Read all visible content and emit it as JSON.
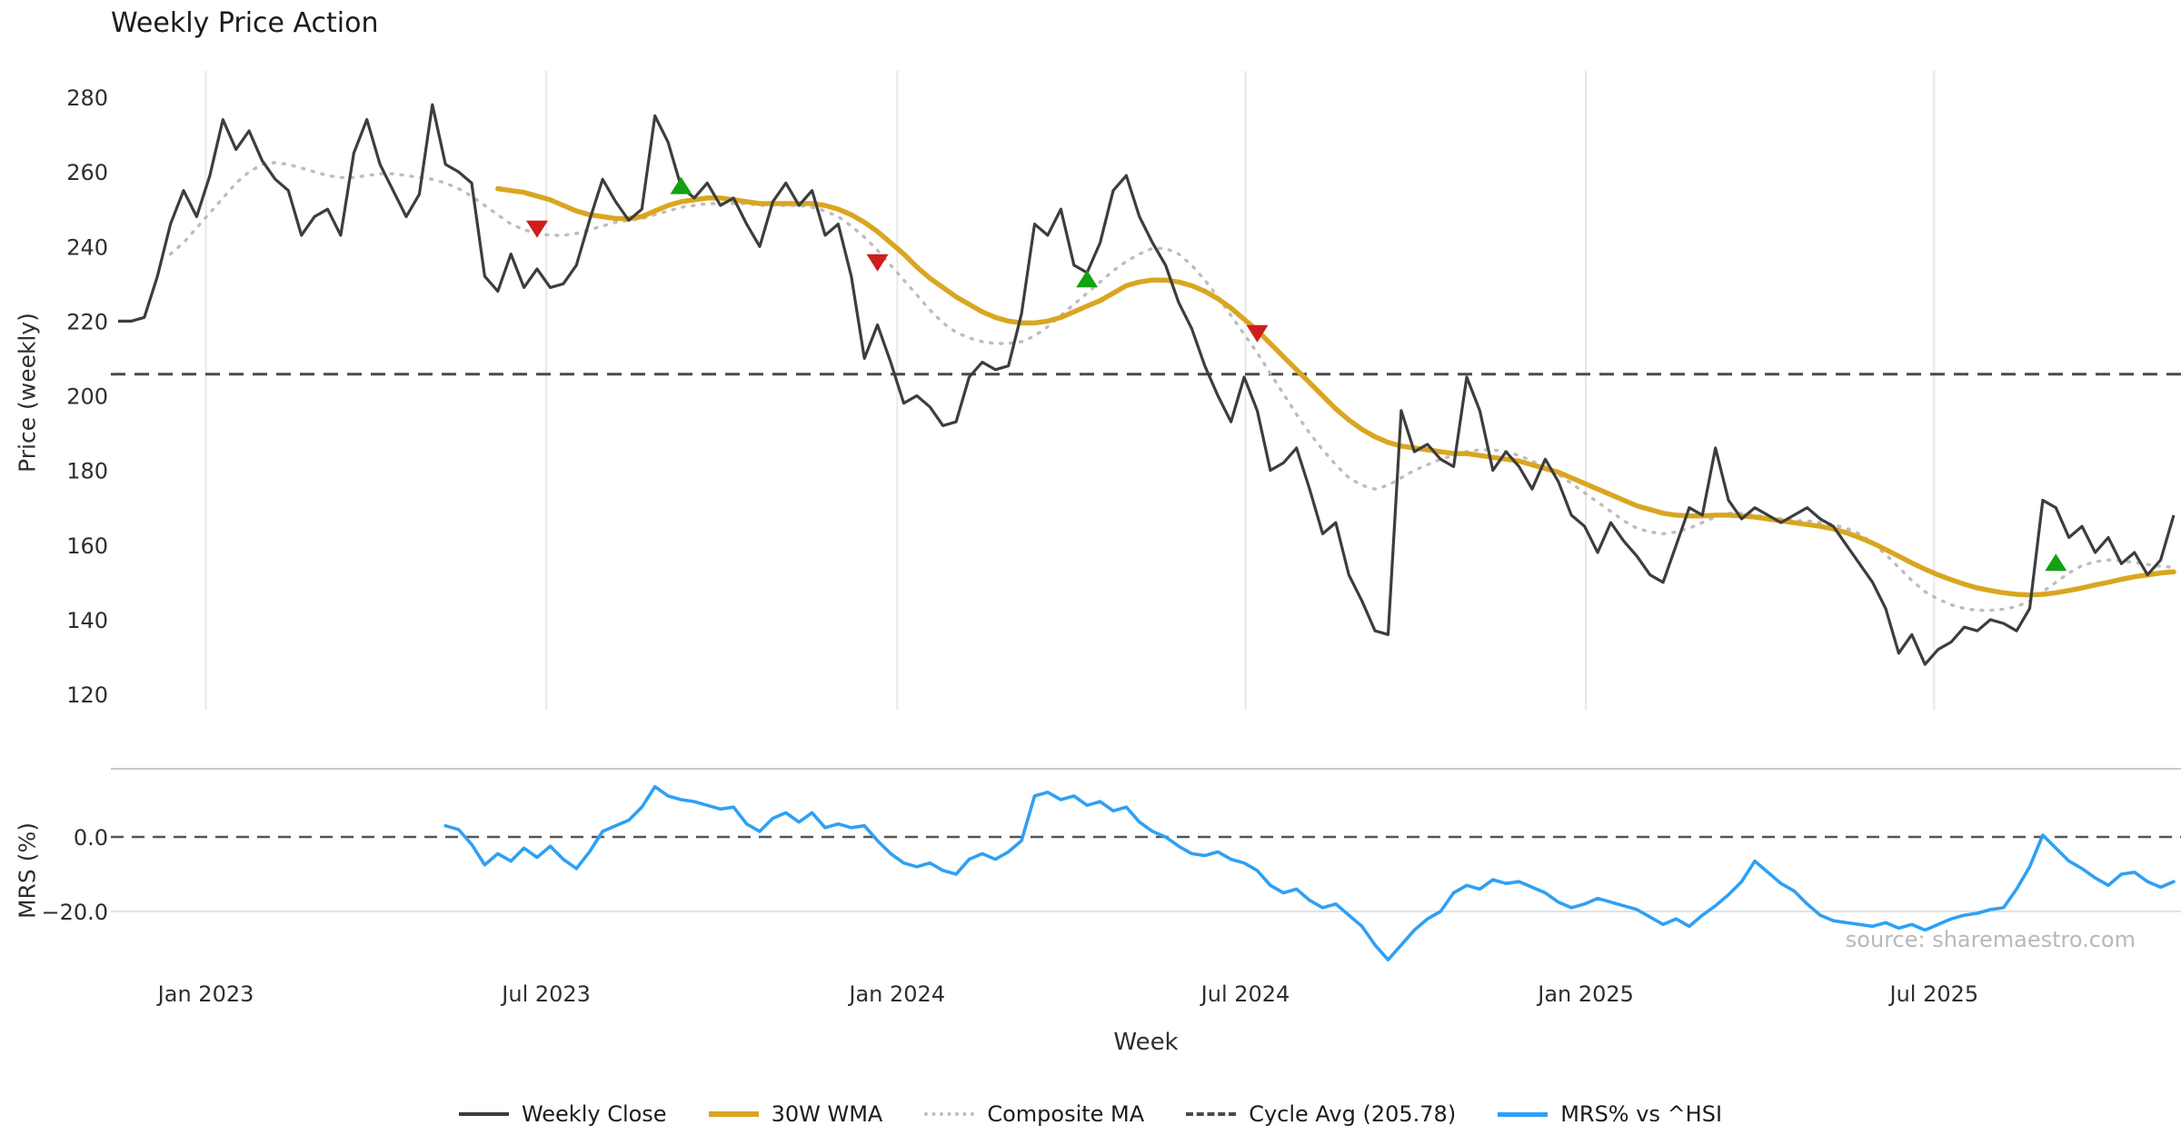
{
  "title": "Weekly Price Action",
  "watermark": "source: sharemaestro.com",
  "chart_data": {
    "type": "line",
    "title": "Weekly Price Action",
    "xlabel": "Week",
    "ylabel_price": "Price (weekly)",
    "ylabel_mrs": "MRS (%)",
    "cycle_avg": 205.78,
    "price_ylim": [
      120,
      280
    ],
    "mrs_ylim": [
      -36.6,
      18.3
    ],
    "grid": "vertical-only",
    "legend_position": "bottom-center",
    "price_ticks": [
      280,
      260,
      240,
      220,
      200,
      180,
      160,
      140,
      120
    ],
    "mrs_ticks": [
      {
        "label": "0.0",
        "value": 0
      },
      {
        "label": "−20.0",
        "value": -20
      }
    ],
    "x_ticks": [
      {
        "label": "Jan 2023",
        "index": 6.7
      },
      {
        "label": "Jul 2023",
        "index": 32.7
      },
      {
        "label": "Jan 2024",
        "index": 59.5
      },
      {
        "label": "Jul 2024",
        "index": 86.1
      },
      {
        "label": "Jan 2025",
        "index": 112.1
      },
      {
        "label": "Jul 2025",
        "index": 138.7
      }
    ],
    "legend": [
      "Weekly Close",
      "30W WMA",
      "Composite MA",
      "Cycle Avg (205.78)",
      "MRS% vs ^HSI"
    ],
    "colors": {
      "close": "#3d3d3d",
      "wma": "#d9a620",
      "composite": "#bdbdbd",
      "cycle": "#4a4a4a",
      "mrs": "#2ea0f5",
      "buy": "#12a112",
      "sell": "#cf1d1d",
      "grid": "#e8e8e8",
      "frame": "#c9c9c9",
      "subgrid": "#e2e2e2",
      "tick": "#2e2e2e"
    },
    "markers": [
      {
        "signal": "sell",
        "index": 32,
        "price": 245
      },
      {
        "signal": "buy",
        "index": 43,
        "price": 256
      },
      {
        "signal": "sell",
        "index": 58,
        "price": 236
      },
      {
        "signal": "buy",
        "index": 74,
        "price": 231
      },
      {
        "signal": "sell",
        "index": 87,
        "price": 217
      },
      {
        "signal": "buy",
        "index": 148,
        "price": 155
      }
    ],
    "series": {
      "close": [
        220,
        220,
        221,
        232,
        246,
        255,
        248,
        259,
        274,
        266,
        271,
        263,
        258,
        255,
        243,
        248,
        250,
        243,
        265,
        274,
        262,
        255,
        248,
        254,
        278,
        262,
        260,
        257,
        232,
        228,
        238,
        229,
        234,
        229,
        230,
        235,
        247,
        258,
        252,
        247,
        250,
        275,
        268,
        256,
        253,
        257,
        251,
        253,
        246,
        240,
        252,
        257,
        251,
        255,
        243,
        246,
        232,
        210,
        219,
        209,
        198,
        200,
        197,
        192,
        193,
        205,
        209,
        207,
        208,
        222,
        246,
        243,
        250,
        235,
        233,
        241,
        255,
        259,
        248,
        241,
        235,
        225,
        218,
        208,
        200,
        193,
        205,
        196,
        180,
        182,
        186,
        175,
        163,
        166,
        152,
        145,
        137,
        136,
        196,
        185,
        187,
        183,
        181,
        205,
        196,
        180,
        185,
        181,
        175,
        183,
        177,
        168,
        165,
        158,
        166,
        161,
        157,
        152,
        150,
        160,
        170,
        168,
        186,
        172,
        167,
        170,
        168,
        166,
        168,
        170,
        167,
        165,
        160,
        155,
        150,
        143,
        131,
        136,
        128,
        132,
        134,
        138,
        137,
        140,
        139,
        137,
        143,
        172,
        170,
        162,
        165,
        158,
        162,
        155,
        158,
        152,
        156,
        168
      ],
      "wma30": [
        null,
        null,
        null,
        null,
        null,
        null,
        null,
        null,
        null,
        null,
        null,
        null,
        null,
        null,
        null,
        null,
        null,
        null,
        null,
        null,
        null,
        null,
        null,
        null,
        null,
        null,
        null,
        null,
        null,
        255.5,
        255,
        254.5,
        253.5,
        252.5,
        251,
        249.5,
        248.5,
        248,
        247.5,
        247.5,
        248,
        249.5,
        251,
        252,
        252.5,
        253,
        253,
        252.5,
        252,
        251.5,
        251.5,
        251.5,
        251.5,
        251.5,
        251,
        250,
        248.5,
        246.5,
        244,
        241,
        238,
        234.5,
        231.5,
        229,
        226.5,
        224.5,
        222.5,
        221,
        220,
        219.5,
        219.5,
        220,
        221,
        222.5,
        224,
        225.5,
        227.5,
        229.5,
        230.5,
        231,
        231,
        230.5,
        229.5,
        228,
        226,
        223.5,
        220.5,
        217.5,
        214,
        210.5,
        207,
        203.5,
        200,
        196.5,
        193.5,
        191,
        189,
        187.5,
        186.5,
        186,
        185.5,
        185,
        184.5,
        184.5,
        184,
        183.5,
        183,
        182.5,
        181.5,
        180.5,
        179.5,
        178,
        176.5,
        175,
        173.5,
        172,
        170.5,
        169.5,
        168.5,
        168,
        167.8,
        167.8,
        168,
        168,
        167.8,
        167.5,
        167,
        166.5,
        166,
        165.5,
        165,
        164.3,
        163.3,
        162,
        160.5,
        158.8,
        157,
        155.2,
        153.5,
        152,
        150.7,
        149.5,
        148.5,
        147.8,
        147.2,
        146.8,
        146.6,
        146.8,
        147.2,
        147.8,
        148.5,
        149.3,
        150,
        150.8,
        151.5,
        152,
        152.5,
        152.8
      ],
      "composite": [
        null,
        null,
        null,
        null,
        238,
        241,
        245,
        249,
        253,
        257,
        260,
        262,
        262.5,
        262,
        261,
        260,
        259,
        258.5,
        258.5,
        259,
        259.5,
        259.5,
        259,
        258.5,
        258,
        257,
        255.5,
        253.5,
        251,
        248.5,
        246,
        244.5,
        243.5,
        243,
        243,
        243.5,
        244.5,
        245.5,
        246.5,
        247,
        247.5,
        248.5,
        249.5,
        250.5,
        251,
        251.5,
        251.5,
        251.5,
        251.5,
        251,
        251,
        251,
        251,
        250.5,
        249.5,
        248,
        245.5,
        242.5,
        239,
        235,
        231,
        227,
        223,
        219.5,
        217,
        215.5,
        214.5,
        214,
        214,
        214.5,
        216,
        218.5,
        221.5,
        224.5,
        227.5,
        230.5,
        233.5,
        236,
        238,
        239.5,
        239.5,
        238,
        235,
        231,
        226.5,
        221.5,
        216.5,
        211.5,
        206,
        200.5,
        195,
        190,
        185.5,
        181.5,
        178,
        176,
        175,
        176,
        178,
        180,
        181.5,
        183,
        184,
        185,
        185.5,
        185.5,
        185,
        184,
        182.5,
        181,
        179,
        176.5,
        174,
        171.5,
        169,
        166.5,
        164.5,
        163.5,
        163,
        163.5,
        164.5,
        166,
        167.5,
        168.5,
        168.5,
        168,
        167.5,
        167,
        166.5,
        166.5,
        166,
        165.5,
        164.5,
        163,
        160.5,
        157.5,
        154,
        150.5,
        147.5,
        145.5,
        144,
        143,
        142.5,
        142.5,
        142.8,
        143.5,
        145,
        147.5,
        150,
        152.5,
        154.5,
        155.5,
        156,
        155.8,
        155.3,
        154.8,
        154.3,
        154
      ],
      "mrs": [
        null,
        null,
        null,
        null,
        null,
        null,
        null,
        null,
        null,
        null,
        null,
        null,
        null,
        null,
        null,
        null,
        null,
        null,
        null,
        null,
        null,
        null,
        null,
        null,
        null,
        3,
        2,
        -2,
        -7.5,
        -4.5,
        -6.5,
        -3,
        -5.5,
        -2.5,
        -6,
        -8.5,
        -4,
        1.5,
        3,
        4.5,
        8,
        13.5,
        11,
        10,
        9.5,
        8.5,
        7.5,
        8,
        3.5,
        1.5,
        5,
        6.5,
        4,
        6.5,
        2.5,
        3.5,
        2.5,
        3,
        -1,
        -4.5,
        -7,
        -8,
        -7,
        -9,
        -10,
        -6,
        -4.5,
        -6,
        -4,
        -1,
        11,
        12,
        10,
        11,
        8.5,
        9.5,
        7,
        8,
        4,
        1.5,
        0,
        -2.5,
        -4.5,
        -5,
        -4,
        -6,
        -7,
        -9,
        -13,
        -15,
        -14,
        -17,
        -19,
        -18,
        -21,
        -24,
        -29,
        -33,
        -29,
        -25,
        -22,
        -20,
        -15,
        -13,
        -14,
        -11.5,
        -12.5,
        -12,
        -13.5,
        -15,
        -17.5,
        -19,
        -18,
        -16.5,
        -17.5,
        -18.5,
        -19.5,
        -21.5,
        -23.5,
        -22,
        -24,
        -21,
        -18.5,
        -15.5,
        -12,
        -6.5,
        -9.5,
        -12.5,
        -14.5,
        -18,
        -21,
        -22.5,
        -23,
        -23.5,
        -24,
        -23,
        -24.5,
        -23.5,
        -25,
        -23.5,
        -22,
        -21,
        -20.5,
        -19.5,
        -19,
        -14,
        -8,
        0.5,
        -3,
        -6.5,
        -8.5,
        -11,
        -13,
        -10,
        -9.5,
        -12,
        -13.5,
        -12
      ]
    }
  }
}
